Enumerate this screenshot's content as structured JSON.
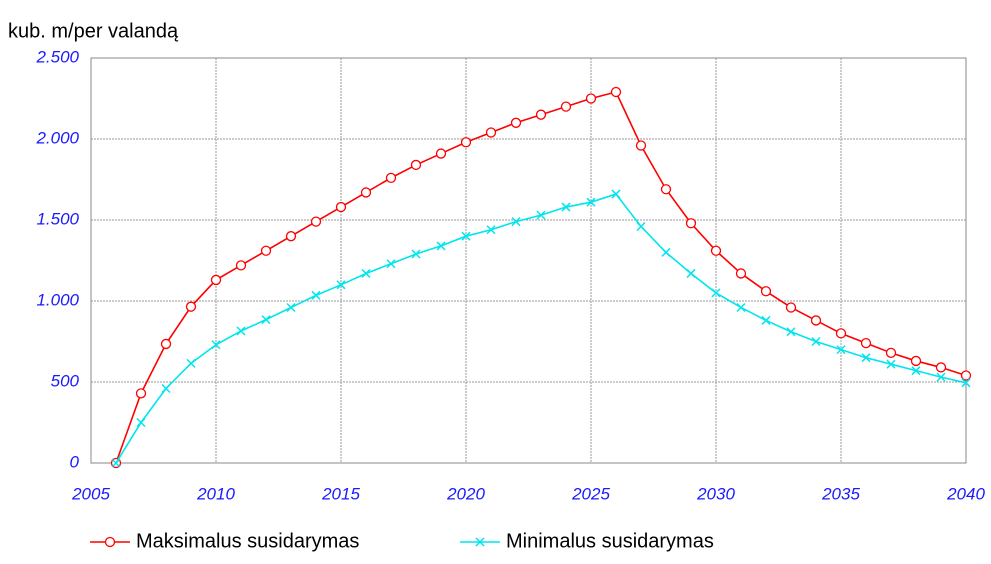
{
  "chart_data": {
    "type": "line",
    "y_label": "kub. m/per valandą",
    "x": [
      2006,
      2007,
      2008,
      2009,
      2010,
      2011,
      2012,
      2013,
      2014,
      2015,
      2016,
      2017,
      2018,
      2019,
      2020,
      2021,
      2022,
      2023,
      2024,
      2025,
      2026,
      2027,
      2028,
      2029,
      2030,
      2031,
      2032,
      2033,
      2034,
      2035,
      2036,
      2037,
      2038,
      2039,
      2040
    ],
    "series": [
      {
        "name": "Maksimalus susidarymas",
        "color": "#ff0000",
        "marker": "circle",
        "values": [
          0,
          430,
          735,
          965,
          1130,
          1220,
          1310,
          1400,
          1490,
          1580,
          1670,
          1760,
          1840,
          1910,
          1980,
          2040,
          2100,
          2150,
          2200,
          2250,
          2290,
          1960,
          1690,
          1480,
          1310,
          1170,
          1060,
          960,
          880,
          800,
          740,
          680,
          630,
          590,
          540
        ]
      },
      {
        "name": "Minimalus susidarymas",
        "color": "#00e5ee",
        "marker": "x",
        "values": [
          0,
          250,
          460,
          615,
          730,
          815,
          885,
          960,
          1035,
          1100,
          1170,
          1230,
          1290,
          1340,
          1400,
          1440,
          1490,
          1530,
          1580,
          1610,
          1660,
          1460,
          1300,
          1170,
          1050,
          960,
          880,
          810,
          750,
          700,
          650,
          610,
          570,
          530,
          495
        ]
      }
    ],
    "xlim": [
      2005,
      2040
    ],
    "xticks": [
      2005,
      2010,
      2015,
      2020,
      2025,
      2030,
      2035,
      2040
    ],
    "ylim": [
      0,
      2500
    ],
    "yticks": [
      0,
      500,
      {
        "value": 1000,
        "label": "1.000"
      },
      {
        "value": 1500,
        "label": "1.500"
      },
      {
        "value": 2000,
        "label": "2.000"
      },
      {
        "value": 2500,
        "label": "2.500"
      }
    ],
    "grid": true,
    "legend": "bottom"
  }
}
